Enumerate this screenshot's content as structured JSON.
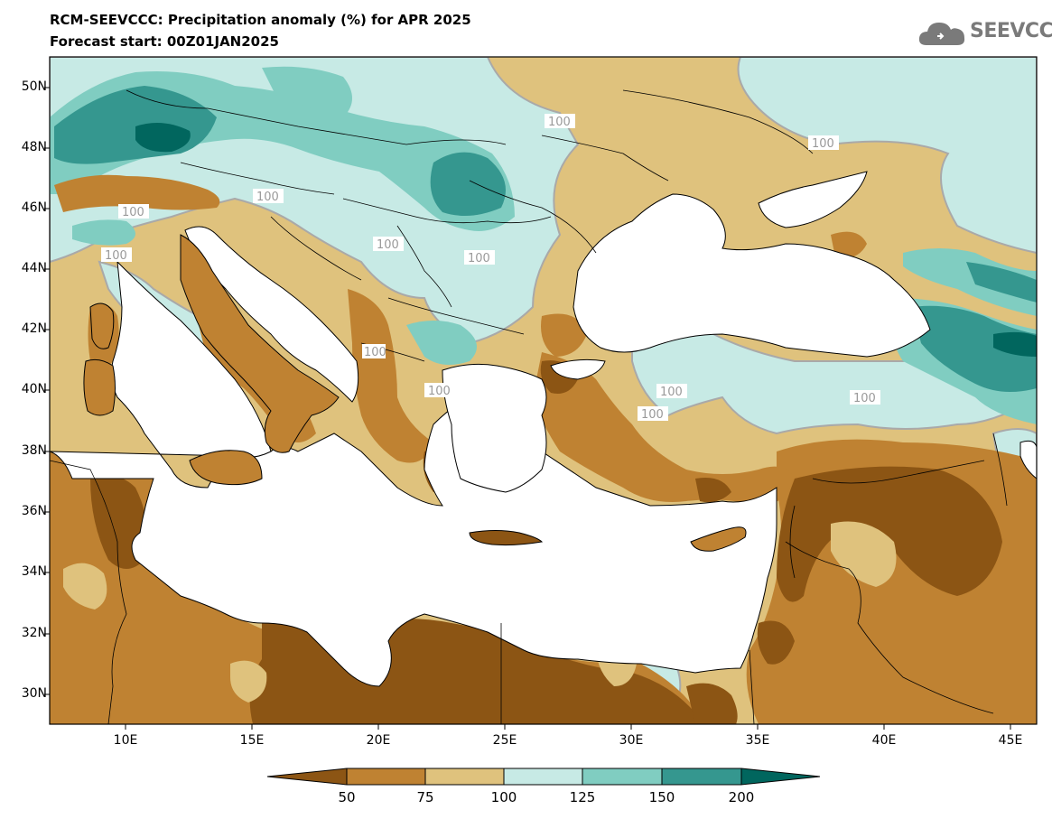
{
  "header": {
    "title": "RCM-SEEVCCC: Precipitation anomaly (%) for APR 2025",
    "subtitle": "Forecast start: 00Z01JAN2025",
    "logo_text": "SEEVCCC"
  },
  "axes": {
    "lat_labels": [
      "50N",
      "48N",
      "46N",
      "44N",
      "42N",
      "40N",
      "38N",
      "36N",
      "34N",
      "32N",
      "30N"
    ],
    "lon_labels": [
      "10E",
      "15E",
      "20E",
      "25E",
      "30E",
      "35E",
      "40E",
      "45E"
    ]
  },
  "contour_labels": [
    "100",
    "100",
    "100",
    "100",
    "100",
    "100",
    "100",
    "100",
    "100",
    "100",
    "100",
    "100"
  ],
  "colorbar": {
    "colors": [
      "#8c5514",
      "#bf8232",
      "#dfc27d",
      "#c7eae5",
      "#80cdc1",
      "#35978f",
      "#01665e"
    ],
    "labels": [
      "50",
      "75",
      "100",
      "125",
      "150",
      "200"
    ]
  }
}
